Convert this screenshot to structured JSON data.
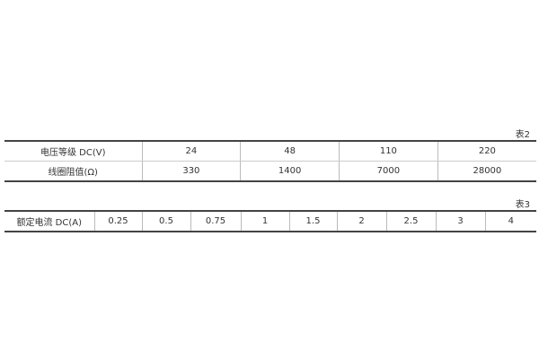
{
  "table2": {
    "caption": "表2",
    "rows": [
      [
        "电压等级 DC(V)",
        "24",
        "48",
        "110",
        "220"
      ],
      [
        "线圈阻值(Ω)",
        "330",
        "1400",
        "7000",
        "28000"
      ]
    ]
  },
  "table3": {
    "caption": "表3",
    "rows": [
      [
        "额定电流 DC(A)",
        "0.25",
        "0.5",
        "0.75",
        "1",
        "1.5",
        "2",
        "2.5",
        "3",
        "4"
      ]
    ]
  }
}
